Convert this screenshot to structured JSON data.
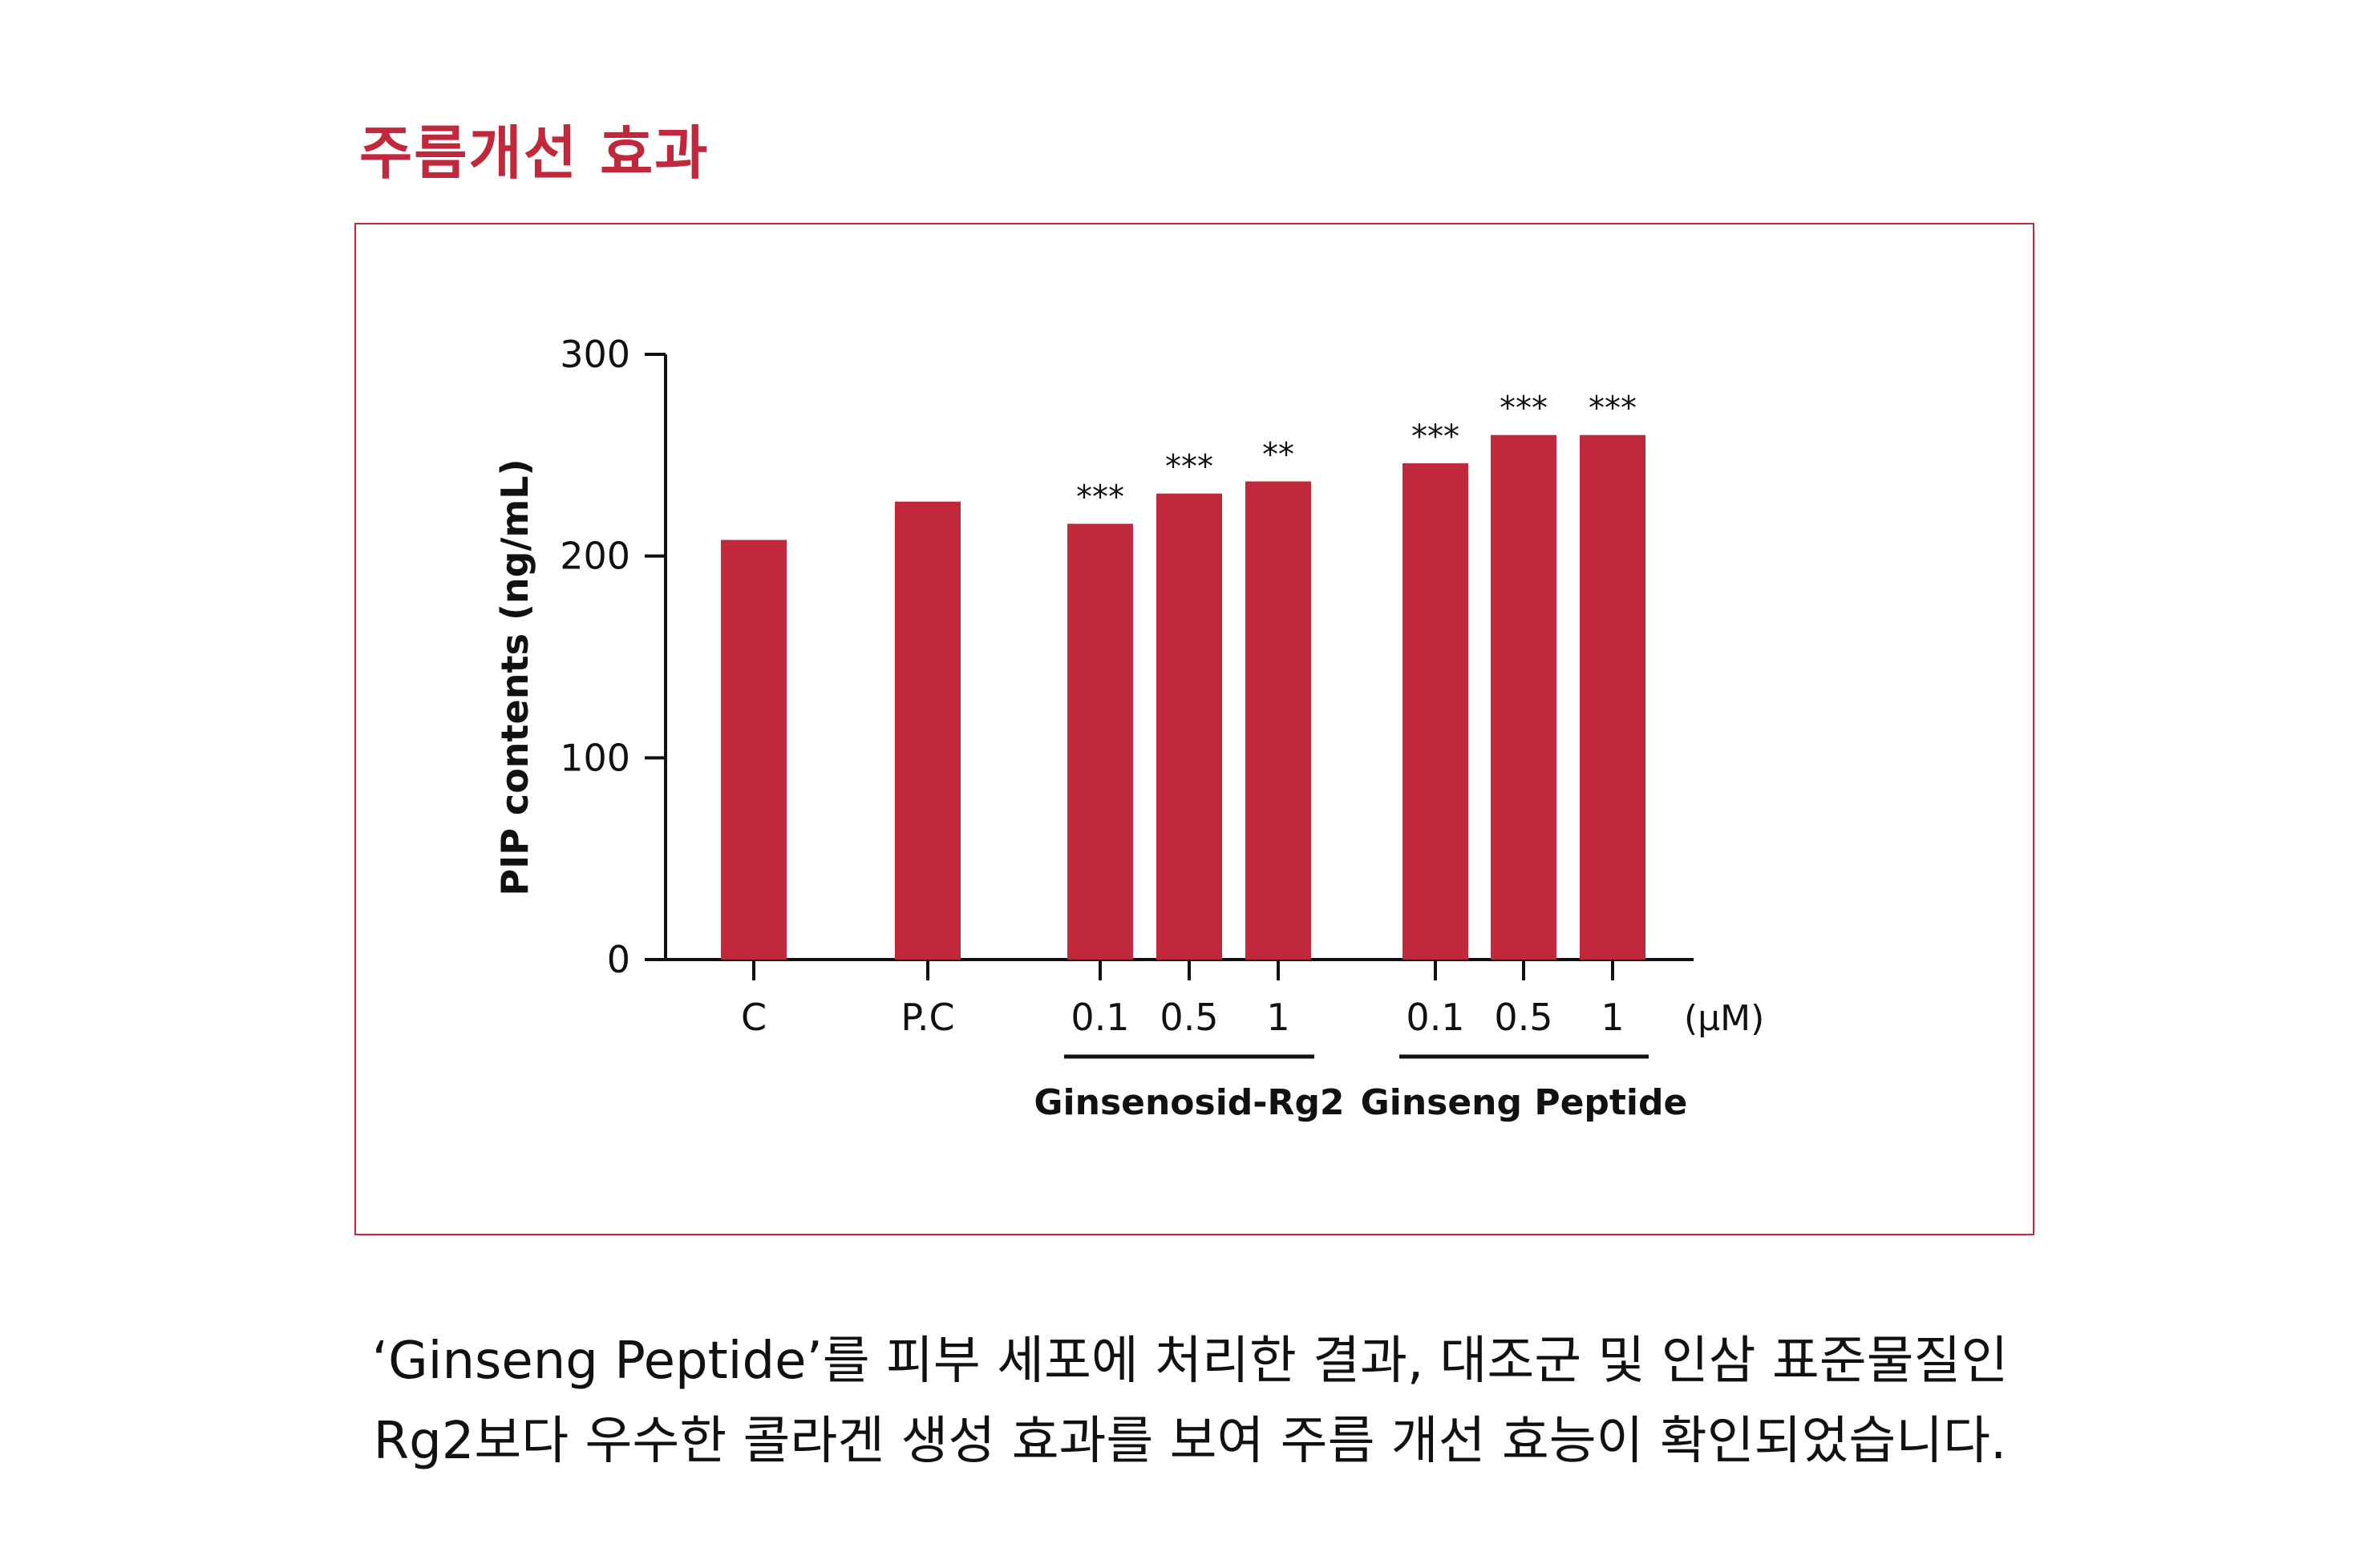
{
  "heading": "주름개선 효과",
  "caption": {
    "line1": "‘Ginseng Peptide’를 피부 세포에 처리한 결과, 대조군 및 인삼 표준물질인",
    "line2": "Rg2보다 우수한 콜라겐 생성 효과를 보여 주름 개선 효능이 확인되었습니다."
  },
  "colors": {
    "bar": "#c0283b",
    "frame": "#c0283b",
    "heading": "#c0283b",
    "axis": "#111111"
  },
  "chart_data": {
    "type": "bar",
    "title": "",
    "ylabel": "PIP contents (ng/mL)",
    "xlabel": "",
    "unit_label": "(μM)",
    "ylim": [
      0,
      300
    ],
    "yticks": [
      0,
      100,
      200,
      300
    ],
    "grid": false,
    "categories": [
      "C",
      "P.C",
      "0.1",
      "0.5",
      "1",
      "0.1",
      "0.5",
      "1"
    ],
    "values": [
      208,
      227,
      216,
      231,
      237,
      246,
      260,
      260
    ],
    "significance": [
      "",
      "",
      "***",
      "***",
      "**",
      "***",
      "***",
      "***"
    ],
    "groups": [
      {
        "label": "Ginsenosid-Rg2",
        "members": [
          2,
          3,
          4
        ]
      },
      {
        "label": "Ginseng Peptide",
        "members": [
          5,
          6,
          7
        ]
      }
    ]
  }
}
